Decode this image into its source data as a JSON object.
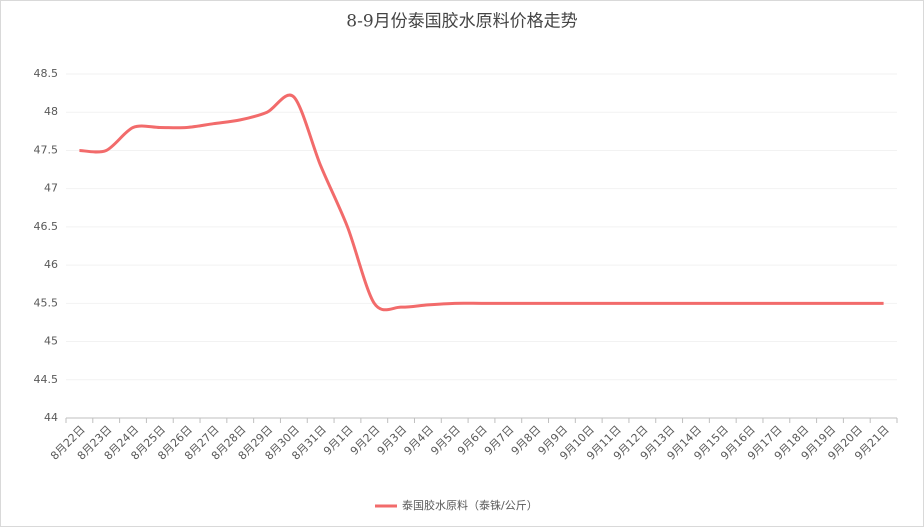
{
  "chart_data": {
    "type": "line",
    "title": "8-9月份泰国胶水原料价格走势",
    "categories": [
      "8月22日",
      "8月23日",
      "8月24日",
      "8月25日",
      "8月26日",
      "8月27日",
      "8月28日",
      "8月29日",
      "8月30日",
      "8月31日",
      "9月1日",
      "9月2日",
      "9月3日",
      "9月4日",
      "9月5日",
      "9月6日",
      "9月7日",
      "9月8日",
      "9月9日",
      "9月10日",
      "9月11日",
      "9月12日",
      "9月13日",
      "9月14日",
      "9月15日",
      "9月16日",
      "9月17日",
      "9月18日",
      "9月19日",
      "9月20日",
      "9月21日"
    ],
    "series": [
      {
        "name": "泰国胶水原料（泰铢/公斤）",
        "color": "#f26b6b",
        "values": [
          47.5,
          47.5,
          47.8,
          47.8,
          47.8,
          47.85,
          47.9,
          48.0,
          48.2,
          47.3,
          46.5,
          45.5,
          45.45,
          45.48,
          45.5,
          45.5,
          45.5,
          45.5,
          45.5,
          45.5,
          45.5,
          45.5,
          45.5,
          45.5,
          45.5,
          45.5,
          45.5,
          45.5,
          45.5,
          45.5,
          45.5
        ]
      }
    ],
    "ylim": [
      44,
      48.5
    ],
    "yticks": [
      44,
      44.5,
      45,
      45.5,
      46,
      46.5,
      47,
      47.5,
      48,
      48.5
    ],
    "legend": "bottom"
  }
}
